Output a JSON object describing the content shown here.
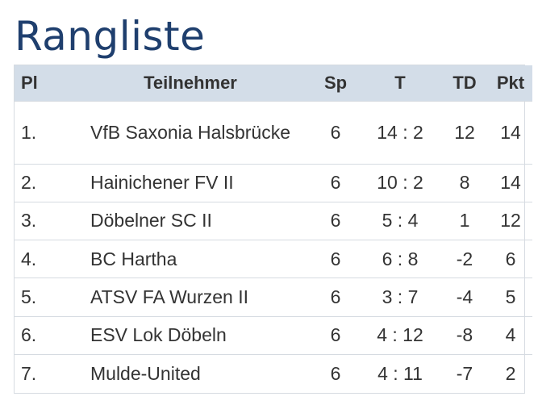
{
  "page": {
    "title": "Rangliste"
  },
  "table": {
    "headers": {
      "pl": "Pl",
      "teilnehmer": "Teilnehmer",
      "sp": "Sp",
      "t": "T",
      "td": "TD",
      "pkt": "Pkt"
    },
    "rows": [
      {
        "pl": "1.",
        "name": "VfB Saxonia Halsbrücke",
        "sp": "6",
        "t": "14 : 2",
        "td": "12",
        "pkt": "14"
      },
      {
        "pl": "2.",
        "name": "Hainichener FV II",
        "sp": "6",
        "t": "10 : 2",
        "td": "8",
        "pkt": "14"
      },
      {
        "pl": "3.",
        "name": "Döbelner SC II",
        "sp": "6",
        "t": "5 : 4",
        "td": "1",
        "pkt": "12"
      },
      {
        "pl": "4.",
        "name": "BC Hartha",
        "sp": "6",
        "t": "6 : 8",
        "td": "-2",
        "pkt": "6"
      },
      {
        "pl": "5.",
        "name": "ATSV FA Wurzen II",
        "sp": "6",
        "t": "3 : 7",
        "td": "-4",
        "pkt": "5"
      },
      {
        "pl": "6.",
        "name": "ESV Lok Döbeln",
        "sp": "6",
        "t": "4 : 12",
        "td": "-8",
        "pkt": "4"
      },
      {
        "pl": "7.",
        "name": "Mulde-United",
        "sp": "6",
        "t": "4 : 11",
        "td": "-7",
        "pkt": "2"
      }
    ]
  }
}
